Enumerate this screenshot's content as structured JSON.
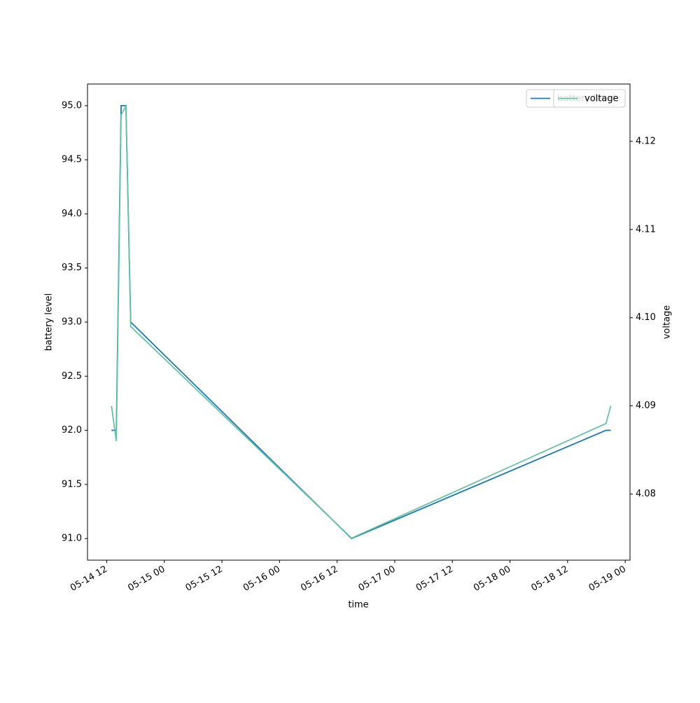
{
  "chart_data": {
    "type": "line",
    "x_label": "time",
    "y_label": "battery level",
    "y2_label": "voltage",
    "x": [
      "05-14 13",
      "05-14 14",
      "05-14 15",
      "05-14 16",
      "05-14 17",
      "05-16 15",
      "05-18 20",
      "05-18 21"
    ],
    "xlim": [
      "05-14 08",
      "05-19 01"
    ],
    "xticks": [
      "05-14 12",
      "05-15 00",
      "05-15 12",
      "05-16 00",
      "05-16 12",
      "05-17 00",
      "05-17 12",
      "05-18 00",
      "05-18 12",
      "05-19 00"
    ],
    "ylim": [
      90.8,
      95.2
    ],
    "yticks": [
      {
        "value": 91,
        "label": "91.0"
      },
      91.5,
      {
        "value": 92,
        "label": "92.0"
      },
      92.5,
      {
        "value": 93,
        "label": "93.0"
      },
      93.5,
      {
        "value": 94,
        "label": "94.0"
      },
      94.5,
      {
        "value": 95,
        "label": "95.0"
      }
    ],
    "y2lim": [
      4.0725,
      4.1265
    ],
    "y2ticks": [
      4.08,
      4.09,
      {
        "value": 4.1,
        "label": "4.10"
      },
      4.11,
      4.12
    ],
    "legend": "upper right",
    "series": [
      {
        "name": "battery level",
        "color": "#1f77b4",
        "values": [
          92,
          92,
          95,
          95,
          93,
          91,
          92,
          92
        ]
      },
      {
        "name": "voltage",
        "color": "#66c2a5",
        "axis": "y2",
        "values": [
          4.09,
          4.086,
          4.123,
          4.124,
          4.099,
          4.075,
          4.088,
          4.09
        ]
      }
    ]
  }
}
